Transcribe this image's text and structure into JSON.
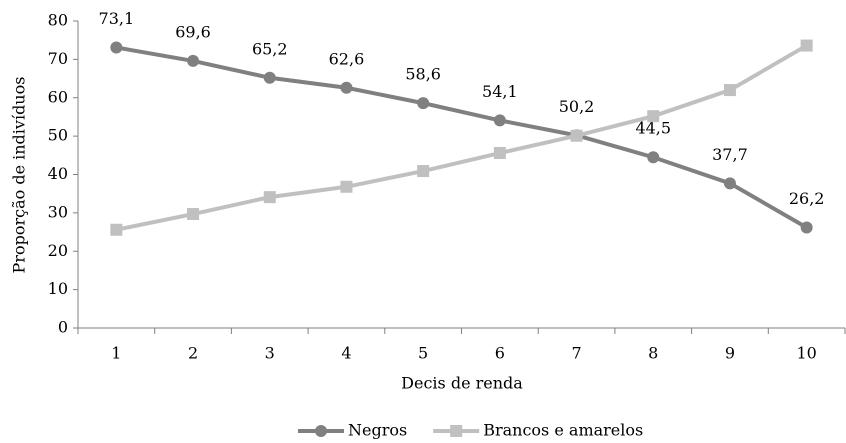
{
  "chart_data": {
    "type": "line",
    "x_label": "Decis de renda",
    "y_label": "Proporção de indivíduos",
    "categories": [
      "1",
      "2",
      "3",
      "4",
      "5",
      "6",
      "7",
      "8",
      "9",
      "10"
    ],
    "series": [
      {
        "name": "Negros",
        "color": "#808080",
        "marker": "circle",
        "values": [
          73.1,
          69.6,
          65.2,
          62.6,
          58.6,
          54.1,
          50.2,
          44.5,
          37.7,
          26.2
        ],
        "value_labels": [
          "73,1",
          "69,6",
          "65,2",
          "62,6",
          "58,6",
          "54,1",
          "50,2",
          "44,5",
          "37,7",
          "26,2"
        ]
      },
      {
        "name": "Brancos e amarelos",
        "color": "#c0c0c0",
        "marker": "square",
        "values": [
          25.6,
          29.7,
          34.1,
          36.8,
          40.9,
          45.6,
          50.1,
          55.2,
          62.0,
          73.6
        ]
      }
    ],
    "ylim": [
      0,
      80
    ],
    "yticks": [
      0,
      10,
      20,
      30,
      40,
      50,
      60,
      70,
      80
    ],
    "grid": false,
    "legend": "bottom"
  }
}
